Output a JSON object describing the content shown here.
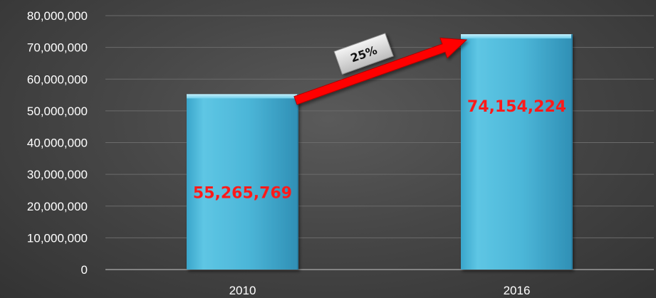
{
  "chart_data": {
    "type": "bar",
    "categories": [
      "2010",
      "2016"
    ],
    "values": [
      55265769,
      74154224
    ],
    "data_labels": [
      "55,265,769",
      "74,154,224"
    ],
    "yticks": [
      "0",
      "10,000,000",
      "20,000,000",
      "30,000,000",
      "40,000,000",
      "50,000,000",
      "60,000,000",
      "70,000,000",
      "80,000,000"
    ],
    "ylim": [
      0,
      80000000
    ],
    "grid": true,
    "legend": "none",
    "annotation": {
      "text": "25%",
      "from": "2010",
      "to": "2016"
    },
    "colors": {
      "bar": "#4fb8d9",
      "data_label": "#ff1a1a",
      "arrow": "#ff0000",
      "axis_text": "#ffffff"
    }
  }
}
